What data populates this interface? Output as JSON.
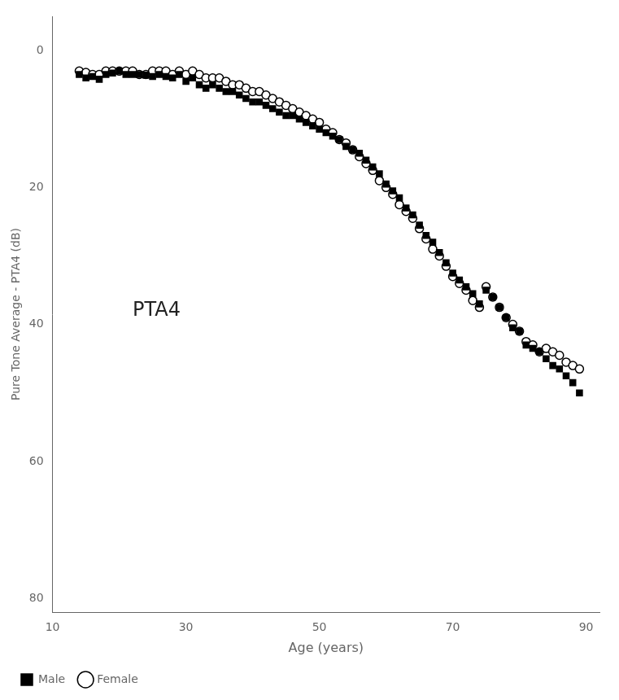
{
  "chart_data": {
    "type": "scatter",
    "xlabel": "Age (years)",
    "ylabel": "Pure Tone Average - PTA4 (dB)",
    "xlim": [
      10,
      92
    ],
    "ylim": [
      82,
      -5
    ],
    "xticks": [
      10,
      30,
      50,
      70,
      90
    ],
    "yticks": [
      0,
      20,
      40,
      60,
      80
    ],
    "grid": false,
    "legend": "lower left",
    "x": [
      14,
      15,
      16,
      17,
      18,
      19,
      20,
      21,
      22,
      23,
      24,
      25,
      26,
      27,
      28,
      29,
      30,
      31,
      32,
      33,
      34,
      35,
      36,
      37,
      38,
      39,
      40,
      41,
      42,
      43,
      44,
      45,
      46,
      47,
      48,
      49,
      50,
      51,
      52,
      53,
      54,
      55,
      56,
      57,
      58,
      59,
      60,
      61,
      62,
      63,
      64,
      65,
      66,
      67,
      68,
      69,
      70,
      71,
      72,
      73,
      74,
      75,
      76,
      77,
      78,
      79,
      80,
      81,
      82,
      83,
      84,
      85,
      86,
      87,
      88,
      89
    ],
    "series": [
      {
        "name": "Male",
        "color": "#000000",
        "marker": "square",
        "values": [
          3.5,
          4.0,
          3.8,
          4.2,
          3.5,
          3.3,
          3.0,
          3.5,
          3.5,
          3.5,
          3.6,
          3.8,
          3.5,
          3.8,
          4.0,
          3.5,
          4.5,
          4.0,
          5.0,
          5.5,
          5.0,
          5.5,
          6.0,
          6.0,
          6.5,
          7.0,
          7.5,
          7.5,
          8.0,
          8.5,
          9.0,
          9.5,
          9.5,
          10.0,
          10.5,
          11.0,
          11.5,
          12.0,
          12.5,
          13.0,
          14.0,
          14.5,
          15.0,
          16.0,
          17.0,
          18.0,
          19.5,
          20.5,
          21.5,
          23.0,
          24.0,
          25.5,
          27.0,
          28.0,
          29.5,
          31.0,
          32.5,
          33.5,
          34.5,
          35.5,
          37.0,
          35.0,
          36.0,
          37.5,
          39.0,
          40.5,
          41.0,
          43.0,
          43.5,
          44.0,
          45.0,
          46.0,
          46.5,
          47.5,
          48.5,
          50.0
        ]
      },
      {
        "name": "Female",
        "color": "#000000",
        "marker": "open_circle",
        "values": [
          3.0,
          3.2,
          3.5,
          3.5,
          3.0,
          3.0,
          3.0,
          3.0,
          3.0,
          3.5,
          3.5,
          3.0,
          3.0,
          3.0,
          3.5,
          3.0,
          3.5,
          3.0,
          3.5,
          4.0,
          4.0,
          4.0,
          4.5,
          5.0,
          5.0,
          5.5,
          6.0,
          6.0,
          6.5,
          7.0,
          7.5,
          8.0,
          8.5,
          9.0,
          9.5,
          10.0,
          10.5,
          11.5,
          12.0,
          13.0,
          13.5,
          14.5,
          15.5,
          16.5,
          17.5,
          19.0,
          20.0,
          21.0,
          22.5,
          23.5,
          24.5,
          26.0,
          27.5,
          29.0,
          30.0,
          31.5,
          33.0,
          34.0,
          35.0,
          36.5,
          37.5,
          34.5,
          36.0,
          37.5,
          39.0,
          40.0,
          41.0,
          42.5,
          43.0,
          44.0,
          43.5,
          44.0,
          44.5,
          45.5,
          46.0,
          46.5
        ]
      }
    ],
    "annotations": [
      {
        "text": "PTA4",
        "x": 22,
        "y": 38
      }
    ]
  }
}
